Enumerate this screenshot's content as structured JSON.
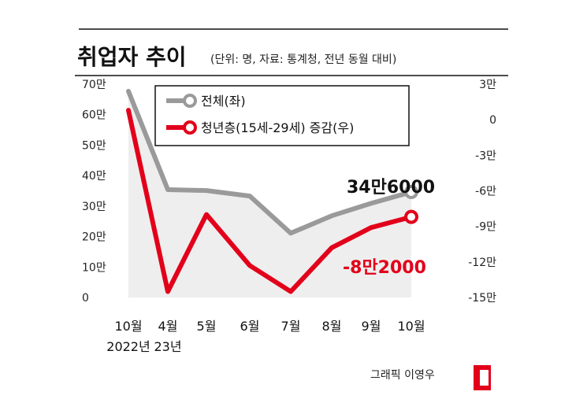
{
  "title": "취업자 추이",
  "subtitle": "(단위: 명, 자료: 통계청, 전년 동월 대비)",
  "credit": "그래픽 이영우",
  "colors": {
    "total": "#9a9a9a",
    "youth": "#e2001a",
    "area": "#eeeeee",
    "text": "#111111"
  },
  "chart_data": {
    "type": "line",
    "categories": [
      "10월",
      "4월",
      "5월",
      "6월",
      "7월",
      "8월",
      "9월",
      "10월"
    ],
    "category_sublabels": [
      "2022년",
      "23년",
      "",
      "",
      "",
      "",
      "",
      ""
    ],
    "left_axis": {
      "ylim": [
        0,
        700000
      ],
      "ticks": [
        0,
        100000,
        200000,
        300000,
        400000,
        500000,
        600000,
        700000
      ],
      "tick_labels": [
        "0",
        "10만",
        "20만",
        "30만",
        "40만",
        "50만",
        "60만",
        "70만"
      ]
    },
    "right_axis": {
      "ylim": [
        -150000,
        30000
      ],
      "ticks": [
        30000,
        0,
        -30000,
        -60000,
        -90000,
        -120000,
        -150000
      ],
      "tick_labels": [
        "3만",
        "0",
        "-3만",
        "-6만",
        "-9만",
        "-12만",
        "-15만"
      ]
    },
    "series": [
      {
        "name": "전체(좌)",
        "axis": "left",
        "values": [
          677000,
          354000,
          351000,
          333000,
          211000,
          268000,
          309000,
          346000
        ],
        "end_label": "34만6000"
      },
      {
        "name": "청년층(15세-29세) 증감(우)",
        "axis": "right",
        "values": [
          8000,
          -145000,
          -80000,
          -123000,
          -145000,
          -108000,
          -91000,
          -82000
        ],
        "end_label": "-8만2000"
      }
    ]
  }
}
